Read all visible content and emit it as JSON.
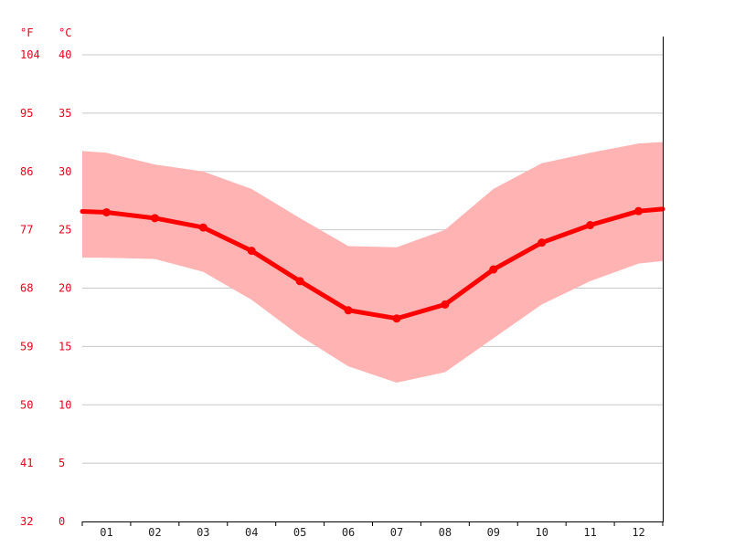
{
  "chart_data": {
    "type": "line",
    "units": {
      "left": "°F",
      "right": "°C"
    },
    "categories": [
      "01",
      "02",
      "03",
      "04",
      "05",
      "06",
      "07",
      "08",
      "09",
      "10",
      "11",
      "12"
    ],
    "ylim": [
      0,
      40
    ],
    "ytick_celsius": [
      "0",
      "5",
      "10",
      "15",
      "20",
      "25",
      "30",
      "35",
      "40"
    ],
    "ytick_fahrenheit": [
      "32",
      "41",
      "50",
      "59",
      "68",
      "77",
      "86",
      "95",
      "104"
    ],
    "grid": true,
    "series": [
      {
        "role": "average",
        "values": [
          26.5,
          26.0,
          25.2,
          23.2,
          20.6,
          18.1,
          17.4,
          18.6,
          21.6,
          23.9,
          25.4,
          26.6
        ]
      },
      {
        "role": "max",
        "values": [
          31.6,
          30.6,
          30.0,
          28.5,
          26.0,
          23.6,
          23.5,
          25.0,
          28.5,
          30.7,
          31.6,
          32.4
        ]
      },
      {
        "role": "min",
        "values": [
          22.6,
          22.5,
          21.4,
          19.0,
          15.9,
          13.3,
          11.9,
          12.8,
          15.7,
          18.6,
          20.6,
          22.1
        ]
      }
    ],
    "colors": {
      "average": "#ff0000",
      "range": "#ffb3b3",
      "tick_labels": "#e8001c"
    }
  }
}
